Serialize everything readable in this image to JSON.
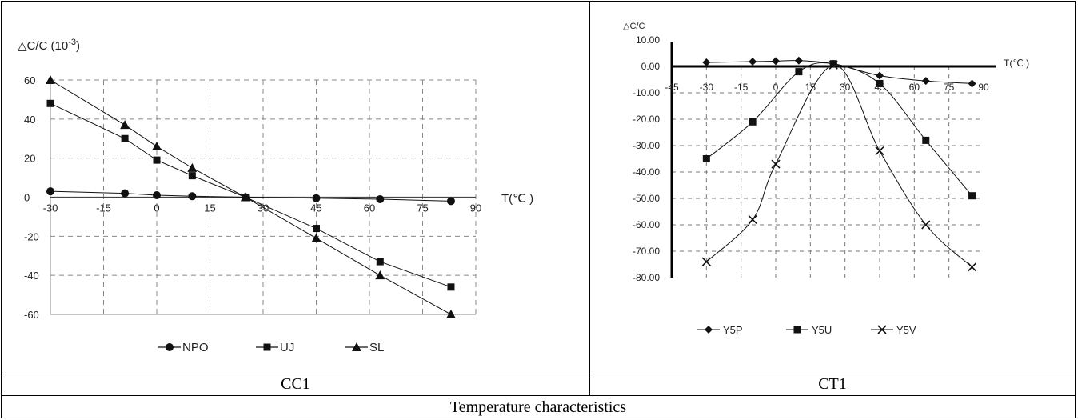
{
  "captions": {
    "left": "CC1",
    "right": "CT1",
    "bottom": "Temperature characteristics"
  },
  "chart_data": [
    {
      "type": "line",
      "ylabel_prefix": "△C/C",
      "ylabel_base": "(10",
      "ylabel_exp": "-3",
      "ylabel_suffix": ")",
      "xlabel": "T(℃ )",
      "xlim": [
        -30,
        90
      ],
      "ylim": [
        -60,
        60
      ],
      "x_ticks": [
        "-30",
        "-15",
        "0",
        "15",
        "30",
        "45",
        "60",
        "75",
        "90"
      ],
      "y_ticks": [
        "60",
        "40",
        "20",
        "0",
        "-20",
        "-40",
        "-60"
      ],
      "grid": true,
      "legend_position": "bottom",
      "series": [
        {
          "name": "NPO",
          "marker": "circle",
          "x": [
            -30,
            -9,
            0,
            10,
            25,
            45,
            63,
            83
          ],
          "y": [
            3,
            2,
            1,
            0.5,
            0,
            -0.5,
            -1,
            -2
          ]
        },
        {
          "name": "UJ",
          "marker": "square",
          "x": [
            -30,
            -9,
            0,
            10,
            25,
            45,
            63,
            83
          ],
          "y": [
            48,
            30,
            19,
            11,
            0,
            -16,
            -33,
            -46
          ]
        },
        {
          "name": "SL",
          "marker": "triangle",
          "x": [
            -30,
            -9,
            0,
            10,
            25,
            45,
            63,
            83
          ],
          "y": [
            60,
            37,
            26,
            15,
            0,
            -21,
            -40,
            -60
          ]
        }
      ]
    },
    {
      "type": "line",
      "ylabel": "△C/C",
      "xlabel": "T(℃ )",
      "xlim": [
        -45,
        90
      ],
      "ylim": [
        -80,
        10
      ],
      "x_ticks": [
        "-45",
        "-30",
        "-15",
        "0",
        "15",
        "30",
        "45",
        "60",
        "75",
        "90"
      ],
      "y_ticks": [
        "10.00",
        "0.00",
        "-10.00",
        "-20.00",
        "-30.00",
        "-40.00",
        "-50.00",
        "-60.00",
        "-70.00",
        "-80.00"
      ],
      "grid": true,
      "legend_position": "bottom",
      "series": [
        {
          "name": "Y5P",
          "marker": "diamond",
          "x": [
            -30,
            -10,
            0,
            10,
            25,
            45,
            65,
            85
          ],
          "y": [
            1.5,
            1.8,
            2,
            2.2,
            1,
            -3.5,
            -5.5,
            -6.5
          ]
        },
        {
          "name": "Y5U",
          "marker": "square",
          "x": [
            -30,
            -10,
            10,
            25,
            45,
            65,
            85
          ],
          "y": [
            -35,
            -21,
            -2,
            1,
            -6.5,
            -28,
            -49
          ]
        },
        {
          "name": "Y5V",
          "marker": "x",
          "x": [
            -30,
            -10,
            0,
            25,
            45,
            65,
            85
          ],
          "y": [
            -74,
            -58,
            -37,
            0.5,
            -32,
            -60,
            -76
          ]
        }
      ]
    }
  ]
}
